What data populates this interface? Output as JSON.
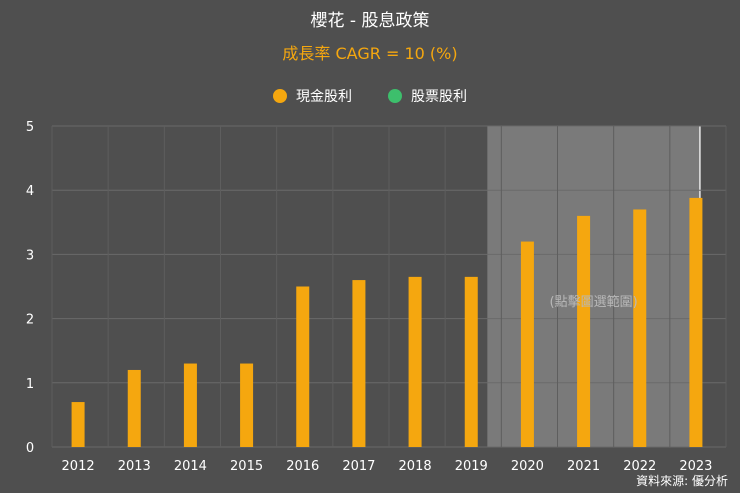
{
  "title": "櫻花 - 股息政策",
  "subtitle": "成長率 CAGR = 10 (%)",
  "legend": [
    {
      "label": "現金股利",
      "color": "#f5a70f"
    },
    {
      "label": "股票股利",
      "color": "#3dbf6c"
    }
  ],
  "selection_hint": "(點擊圖選範圍)",
  "footer": "資料來源: 優分析",
  "chart_data": {
    "type": "bar",
    "categories": [
      "2012",
      "2013",
      "2014",
      "2015",
      "2016",
      "2017",
      "2018",
      "2019",
      "2020",
      "2021",
      "2022",
      "2023"
    ],
    "series": [
      {
        "name": "現金股利",
        "values": [
          0.7,
          1.2,
          1.3,
          1.3,
          2.5,
          2.6,
          2.65,
          2.65,
          3.2,
          3.6,
          3.7,
          3.88
        ]
      },
      {
        "name": "股票股利",
        "values": [
          0,
          0,
          0,
          0,
          0,
          0,
          0,
          0,
          0,
          0,
          0,
          0
        ]
      }
    ],
    "ylim": [
      0,
      5
    ],
    "yticks": [
      0,
      1,
      2,
      3,
      4,
      5
    ],
    "highlighted_range": [
      "2020",
      "2023"
    ],
    "grid": true,
    "legend_position": "top-center"
  }
}
